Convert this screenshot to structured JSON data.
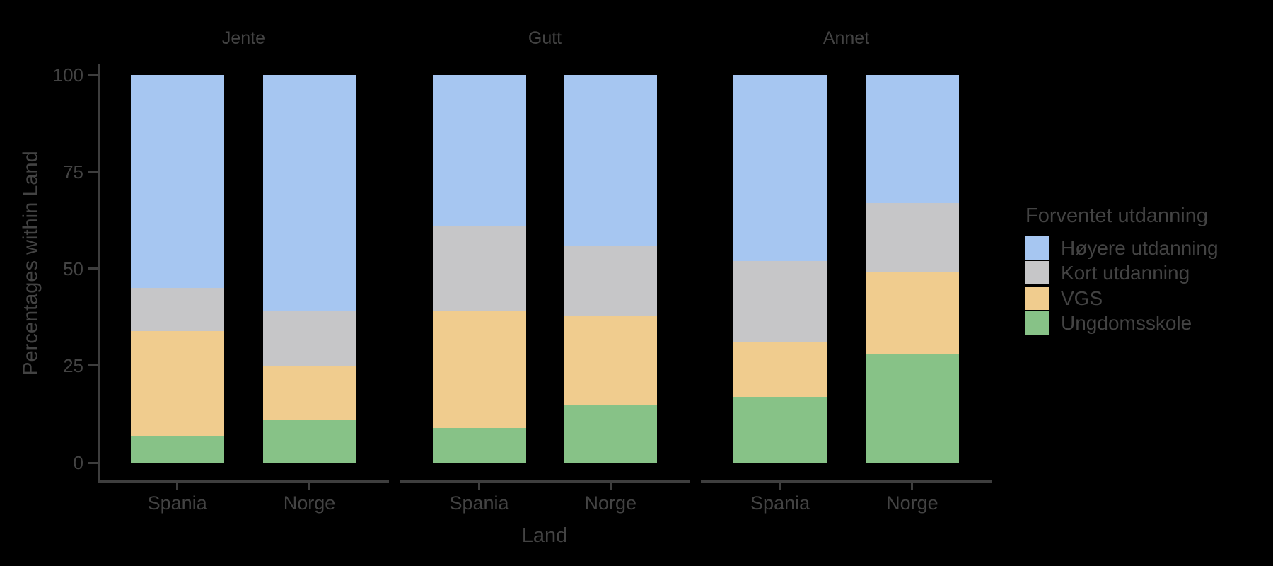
{
  "colors": {
    "background": "#000000",
    "text": "#434343",
    "axis": "#3E3E3E"
  },
  "chart_data": {
    "type": "bar",
    "stacked": true,
    "percent_within_group": true,
    "title": "",
    "xlabel": "Land",
    "ylabel": "Percentages within Land",
    "ylim": [
      0,
      100
    ],
    "yticks": [
      0,
      25,
      50,
      75,
      100
    ],
    "grid": false,
    "facets": [
      "Jente",
      "Gutt",
      "Annet"
    ],
    "categories": [
      "Spania",
      "Norge"
    ],
    "legend_title": "Forventet utdanning",
    "legend_position": "right",
    "series": [
      {
        "name": "Høyere utdanning",
        "color": "#A6C6F1",
        "values": {
          "Jente": [
            55,
            61
          ],
          "Gutt": [
            39,
            44
          ],
          "Annet": [
            48,
            33
          ]
        }
      },
      {
        "name": "Kort utdanning",
        "color": "#C6C6C8",
        "values": {
          "Jente": [
            11,
            14
          ],
          "Gutt": [
            22,
            18
          ],
          "Annet": [
            21,
            18
          ]
        }
      },
      {
        "name": "VGS",
        "color": "#F0CC8E",
        "values": {
          "Jente": [
            27,
            14
          ],
          "Gutt": [
            30,
            23
          ],
          "Annet": [
            14,
            21
          ]
        }
      },
      {
        "name": "Ungdomsskole",
        "color": "#87C287",
        "values": {
          "Jente": [
            7,
            11
          ],
          "Gutt": [
            9,
            15
          ],
          "Annet": [
            17,
            28
          ]
        }
      }
    ],
    "stack_order_bottom_to_top": [
      "Ungdomsskole",
      "VGS",
      "Kort utdanning",
      "Høyere utdanning"
    ]
  }
}
